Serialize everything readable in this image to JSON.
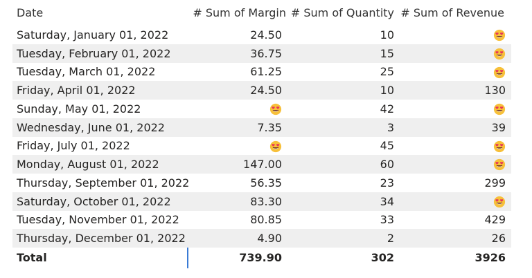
{
  "columns": {
    "date": "Date",
    "margin": "# Sum of Margin",
    "quantity": "# Sum of Quantity",
    "revenue": "# Sum of Revenue"
  },
  "rows": [
    {
      "date": "Saturday, January 01, 2022",
      "margin": "24.50",
      "quantity": "10",
      "revenue": ""
    },
    {
      "date": "Tuesday, February 01, 2022",
      "margin": "36.75",
      "quantity": "15",
      "revenue": ""
    },
    {
      "date": "Tuesday, March 01, 2022",
      "margin": "61.25",
      "quantity": "25",
      "revenue": ""
    },
    {
      "date": "Friday, April 01, 2022",
      "margin": "24.50",
      "quantity": "10",
      "revenue": "130"
    },
    {
      "date": "Sunday, May 01, 2022",
      "margin": "",
      "quantity": "42",
      "revenue": ""
    },
    {
      "date": "Wednesday, June 01, 2022",
      "margin": "7.35",
      "quantity": "3",
      "revenue": "39"
    },
    {
      "date": "Friday, July 01, 2022",
      "margin": "",
      "quantity": "45",
      "revenue": ""
    },
    {
      "date": "Monday, August 01, 2022",
      "margin": "147.00",
      "quantity": "60",
      "revenue": ""
    },
    {
      "date": "Thursday, September 01, 2022",
      "margin": "56.35",
      "quantity": "23",
      "revenue": "299"
    },
    {
      "date": "Saturday, October 01, 2022",
      "margin": "83.30",
      "quantity": "34",
      "revenue": ""
    },
    {
      "date": "Tuesday, November 01, 2022",
      "margin": "80.85",
      "quantity": "33",
      "revenue": "429"
    },
    {
      "date": "Thursday, December 01, 2022",
      "margin": "4.90",
      "quantity": "2",
      "revenue": "26"
    }
  ],
  "total": {
    "label": "Total",
    "margin": "739.90",
    "quantity": "302",
    "revenue": "3926"
  },
  "icons": {
    "emoji": "heart-eyes-emoji-icon"
  },
  "colors": {
    "accent": "#3a7bd5",
    "stripe": "#efefef"
  }
}
